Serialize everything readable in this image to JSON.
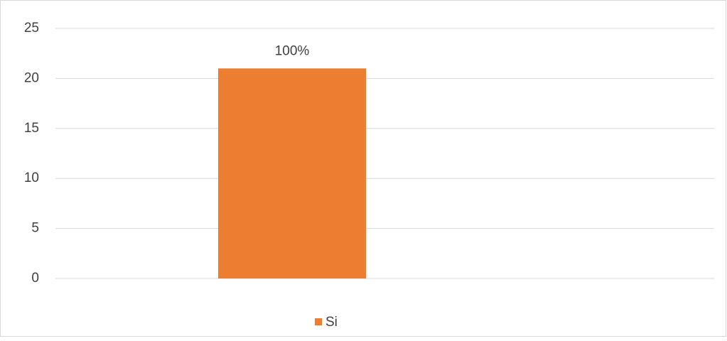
{
  "chart_data": {
    "type": "bar",
    "categories": [
      null
    ],
    "series": [
      {
        "name": "Si",
        "color": "#ed7d31",
        "values": [
          21
        ],
        "percent_labels": [
          "100%"
        ]
      }
    ],
    "ylim": [
      0,
      25
    ],
    "yticks": [
      0,
      5,
      10,
      15,
      20,
      25
    ],
    "grid": true,
    "legend": "bottom"
  }
}
